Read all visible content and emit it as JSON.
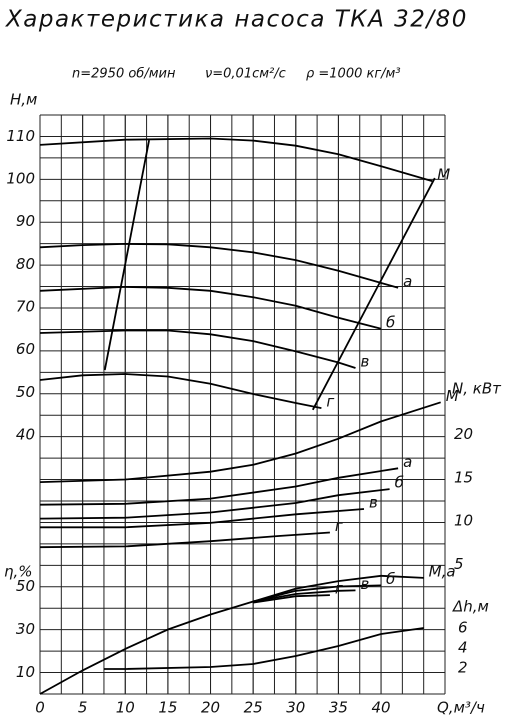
{
  "chart_data": {
    "type": "line",
    "title": "Характеристика насоса ТКА 32/80",
    "params": [
      "n=2950 об/мин",
      "ν=0,01см²/с",
      "ρ =1000 кг/м³"
    ],
    "xlabel": "Q,м³/ч",
    "xlim": [
      0,
      47.5
    ],
    "xticks": [
      0,
      5,
      10,
      15,
      20,
      25,
      30,
      35,
      40
    ],
    "ylabel": "H,м",
    "ylim": [
      40,
      115
    ],
    "yticks": [
      40,
      50,
      60,
      70,
      80,
      90,
      100,
      110
    ],
    "y2label": "N, кВт",
    "y2lim": [
      0,
      25
    ],
    "y2ticks": [
      5,
      10,
      15,
      20
    ],
    "y3label": "η,%",
    "y3lim": [
      0,
      60
    ],
    "y3ticks": [
      10,
      30,
      50
    ],
    "y4label": "Δh,м",
    "y4lim": [
      0,
      8
    ],
    "y4ticks": [
      2,
      4,
      6
    ],
    "series": [
      {
        "name": "M",
        "axis": "y",
        "x": [
          0,
          10,
          20,
          25,
          30,
          35,
          40,
          46
        ],
        "values": [
          108,
          109.2,
          109.5,
          109,
          107.8,
          105.8,
          103,
          99.5
        ]
      },
      {
        "name": "а",
        "axis": "y",
        "x": [
          0,
          5,
          10,
          15,
          20,
          25,
          30,
          35,
          42
        ],
        "values": [
          84,
          84.5,
          84.8,
          84.7,
          84,
          82.8,
          81,
          78.5,
          74.5
        ]
      },
      {
        "name": "б",
        "axis": "y",
        "x": [
          0,
          10,
          15,
          20,
          25,
          30,
          35,
          40
        ],
        "values": [
          73.8,
          74.7,
          74.5,
          73.8,
          72.3,
          70.3,
          67.5,
          64.9
        ]
      },
      {
        "name": "в",
        "axis": "y",
        "x": [
          0,
          10,
          15,
          20,
          25,
          30,
          35,
          37
        ],
        "values": [
          63.9,
          64.5,
          64.5,
          63.6,
          62,
          59.6,
          57,
          55.7
        ]
      },
      {
        "name": "г",
        "axis": "y",
        "x": [
          0,
          5,
          10,
          15,
          20,
          25,
          30,
          33
        ],
        "values": [
          52.9,
          54,
          54.3,
          53.7,
          52,
          49.6,
          47.5,
          46.3
        ]
      },
      {
        "axis": "y",
        "x": [
          7.6,
          12.8
        ],
        "values": [
          55.2,
          109.1
        ]
      },
      {
        "axis": "y",
        "x": [
          32,
          46.3
        ],
        "values": [
          45.9,
          100.2
        ]
      },
      {
        "name": "M",
        "axis": "y2",
        "x": [
          0,
          10,
          20,
          25,
          30,
          35,
          40,
          47
        ],
        "values": [
          14.5,
          14.8,
          15.7,
          16.5,
          17.8,
          19.5,
          21.5,
          23.7
        ]
      },
      {
        "name": "а",
        "axis": "y2",
        "x": [
          0,
          10,
          20,
          30,
          35,
          42
        ],
        "values": [
          11.9,
          12,
          12.6,
          14,
          15,
          16.1
        ]
      },
      {
        "name": "б",
        "axis": "y2",
        "x": [
          0,
          10,
          20,
          30,
          35,
          41
        ],
        "values": [
          10.3,
          10.4,
          11,
          12.1,
          13,
          13.7
        ]
      },
      {
        "name": "в",
        "axis": "y2",
        "x": [
          0,
          10,
          20,
          30,
          38
        ],
        "values": [
          9.3,
          9.3,
          9.8,
          10.8,
          11.4
        ]
      },
      {
        "name": "г",
        "axis": "y2",
        "x": [
          0,
          10,
          20,
          28,
          34
        ],
        "values": [
          7,
          7.1,
          7.7,
          8.3,
          8.7
        ]
      },
      {
        "name": "M,а",
        "axis": "y3",
        "x": [
          0,
          5,
          10,
          15,
          20,
          25,
          30,
          35,
          40,
          45
        ],
        "values": [
          0,
          11,
          21,
          30,
          37,
          43,
          49,
          52.5,
          55,
          54
        ]
      },
      {
        "name": "б",
        "axis": "y3",
        "x": [
          25,
          30,
          35,
          40
        ],
        "values": [
          43,
          48,
          50,
          50.5
        ]
      },
      {
        "name": "в",
        "axis": "y3",
        "x": [
          25,
          30,
          35,
          37
        ],
        "values": [
          43,
          46.5,
          48,
          48.2
        ]
      },
      {
        "name": "г",
        "axis": "y3",
        "x": [
          25,
          30,
          34
        ],
        "values": [
          42.5,
          45.5,
          46
        ]
      },
      {
        "axis": "y4",
        "x": [
          7.5,
          10,
          20,
          25,
          30,
          35,
          40,
          45
        ],
        "values": [
          1.9,
          1.9,
          2.1,
          2.4,
          3.2,
          4.2,
          5.4,
          6
        ]
      }
    ]
  }
}
